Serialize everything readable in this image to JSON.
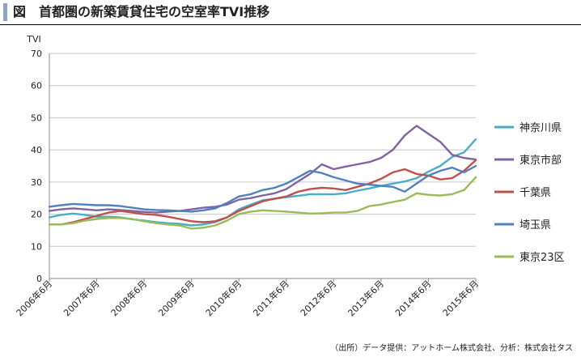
{
  "title": "図　首都圏の新築賃貸住宅の空室率TVI推移",
  "source": "（出所）データ提供：アットホーム株式会社、分析：株式会社タス",
  "chart_data": {
    "type": "line",
    "ylabel": "TVI",
    "ylim": [
      0,
      70
    ],
    "yticks": [
      0,
      10,
      20,
      30,
      40,
      50,
      60,
      70
    ],
    "grid": "horizontal",
    "legend_position": "right",
    "x_start": "2006-06",
    "x_end": "2015-06",
    "x_tick_labels": [
      "2006年6月",
      "2007年6月",
      "2008年6月",
      "2009年6月",
      "2010年6月",
      "2011年6月",
      "2012年6月",
      "2013年6月",
      "2014年6月",
      "2015年6月"
    ],
    "series": [
      {
        "name": "神奈川県",
        "color": "#4bacc6",
        "points": [
          [
            "2006-06",
            19
          ],
          [
            "2006-09",
            19.8
          ],
          [
            "2006-12",
            20.2
          ],
          [
            "2007-03",
            19.8
          ],
          [
            "2007-06",
            19.2
          ],
          [
            "2007-09",
            19.2
          ],
          [
            "2007-12",
            19
          ],
          [
            "2008-03",
            18.4
          ],
          [
            "2008-06",
            18
          ],
          [
            "2008-09",
            17.5
          ],
          [
            "2008-12",
            17.2
          ],
          [
            "2009-03",
            17
          ],
          [
            "2009-06",
            16.5
          ],
          [
            "2009-09",
            16.8
          ],
          [
            "2009-12",
            17.5
          ],
          [
            "2010-03",
            19
          ],
          [
            "2010-06",
            21.5
          ],
          [
            "2010-09",
            23
          ],
          [
            "2010-12",
            24.3
          ],
          [
            "2011-03",
            24.8
          ],
          [
            "2011-06",
            25.3
          ],
          [
            "2011-09",
            25.7
          ],
          [
            "2011-12",
            26.2
          ],
          [
            "2012-03",
            26.2
          ],
          [
            "2012-06",
            26.2
          ],
          [
            "2012-09",
            26.5
          ],
          [
            "2012-12",
            27.3
          ],
          [
            "2013-03",
            28
          ],
          [
            "2013-06",
            28.8
          ],
          [
            "2013-09",
            29.5
          ],
          [
            "2013-12",
            30.2
          ],
          [
            "2014-03",
            31.2
          ],
          [
            "2014-06",
            33.2
          ],
          [
            "2014-09",
            35
          ],
          [
            "2014-12",
            37.8
          ],
          [
            "2015-03",
            39.2
          ],
          [
            "2015-06",
            43.3
          ]
        ]
      },
      {
        "name": "東京市部",
        "color": "#8064a2",
        "points": [
          [
            "2006-06",
            21
          ],
          [
            "2006-09",
            21.5
          ],
          [
            "2006-12",
            21.8
          ],
          [
            "2007-03",
            21.5
          ],
          [
            "2007-06",
            21.2
          ],
          [
            "2007-09",
            21.5
          ],
          [
            "2007-12",
            21.3
          ],
          [
            "2008-03",
            21
          ],
          [
            "2008-06",
            20.7
          ],
          [
            "2008-09",
            20.5
          ],
          [
            "2008-12",
            20.8
          ],
          [
            "2009-03",
            21
          ],
          [
            "2009-06",
            21.5
          ],
          [
            "2009-09",
            22
          ],
          [
            "2009-12",
            22.3
          ],
          [
            "2010-03",
            23
          ],
          [
            "2010-06",
            24.5
          ],
          [
            "2010-09",
            25
          ],
          [
            "2010-12",
            25.8
          ],
          [
            "2011-03",
            26.5
          ],
          [
            "2011-06",
            27.8
          ],
          [
            "2011-09",
            30.2
          ],
          [
            "2011-12",
            32.5
          ],
          [
            "2012-03",
            35.5
          ],
          [
            "2012-06",
            34
          ],
          [
            "2012-09",
            34.8
          ],
          [
            "2012-12",
            35.5
          ],
          [
            "2013-03",
            36.2
          ],
          [
            "2013-06",
            37.5
          ],
          [
            "2013-09",
            40
          ],
          [
            "2013-12",
            44.5
          ],
          [
            "2014-03",
            47.5
          ],
          [
            "2014-06",
            45
          ],
          [
            "2014-09",
            42.5
          ],
          [
            "2014-12",
            38.5
          ],
          [
            "2015-03",
            37.5
          ],
          [
            "2015-06",
            37
          ]
        ]
      },
      {
        "name": "千葉県",
        "color": "#c0504d",
        "points": [
          [
            "2006-06",
            16.8
          ],
          [
            "2006-09",
            16.8
          ],
          [
            "2006-12",
            17.5
          ],
          [
            "2007-03",
            18.5
          ],
          [
            "2007-06",
            19.5
          ],
          [
            "2007-09",
            20.5
          ],
          [
            "2007-12",
            21
          ],
          [
            "2008-03",
            20.5
          ],
          [
            "2008-06",
            20
          ],
          [
            "2008-09",
            19.8
          ],
          [
            "2008-12",
            19.2
          ],
          [
            "2009-03",
            18.5
          ],
          [
            "2009-06",
            17.8
          ],
          [
            "2009-09",
            17.5
          ],
          [
            "2009-12",
            17.8
          ],
          [
            "2010-03",
            19
          ],
          [
            "2010-06",
            21
          ],
          [
            "2010-09",
            22.5
          ],
          [
            "2010-12",
            24
          ],
          [
            "2011-03",
            24.8
          ],
          [
            "2011-06",
            25.5
          ],
          [
            "2011-09",
            27
          ],
          [
            "2011-12",
            27.8
          ],
          [
            "2012-03",
            28.2
          ],
          [
            "2012-06",
            28
          ],
          [
            "2012-09",
            27.5
          ],
          [
            "2012-12",
            28.5
          ],
          [
            "2013-03",
            29.5
          ],
          [
            "2013-06",
            31
          ],
          [
            "2013-09",
            33
          ],
          [
            "2013-12",
            34
          ],
          [
            "2014-03",
            32.5
          ],
          [
            "2014-06",
            32
          ],
          [
            "2014-09",
            30.8
          ],
          [
            "2014-12",
            31.2
          ],
          [
            "2015-03",
            33.5
          ],
          [
            "2015-06",
            36.8
          ]
        ]
      },
      {
        "name": "埼玉県",
        "color": "#4f81bd",
        "points": [
          [
            "2006-06",
            22.3
          ],
          [
            "2006-09",
            22.8
          ],
          [
            "2006-12",
            23.2
          ],
          [
            "2007-03",
            23
          ],
          [
            "2007-06",
            22.8
          ],
          [
            "2007-09",
            22.8
          ],
          [
            "2007-12",
            22.5
          ],
          [
            "2008-03",
            22
          ],
          [
            "2008-06",
            21.5
          ],
          [
            "2008-09",
            21.3
          ],
          [
            "2008-12",
            21.2
          ],
          [
            "2009-03",
            21
          ],
          [
            "2009-06",
            20.8
          ],
          [
            "2009-09",
            21.2
          ],
          [
            "2009-12",
            21.8
          ],
          [
            "2010-03",
            23.5
          ],
          [
            "2010-06",
            25.5
          ],
          [
            "2010-09",
            26.2
          ],
          [
            "2010-12",
            27.5
          ],
          [
            "2011-03",
            28.2
          ],
          [
            "2011-06",
            29.5
          ],
          [
            "2011-09",
            31.5
          ],
          [
            "2011-12",
            33.5
          ],
          [
            "2012-03",
            32.8
          ],
          [
            "2012-06",
            31.5
          ],
          [
            "2012-09",
            30.5
          ],
          [
            "2012-12",
            29.5
          ],
          [
            "2013-03",
            29.2
          ],
          [
            "2013-06",
            28.8
          ],
          [
            "2013-09",
            28.5
          ],
          [
            "2013-12",
            27
          ],
          [
            "2014-03",
            29.5
          ],
          [
            "2014-06",
            32
          ],
          [
            "2014-09",
            33.5
          ],
          [
            "2014-12",
            34.5
          ],
          [
            "2015-03",
            33
          ],
          [
            "2015-06",
            35
          ]
        ]
      },
      {
        "name": "東京23区",
        "color": "#9bbb59",
        "points": [
          [
            "2006-06",
            16.8
          ],
          [
            "2006-09",
            16.8
          ],
          [
            "2006-12",
            17.2
          ],
          [
            "2007-03",
            18
          ],
          [
            "2007-06",
            18.5
          ],
          [
            "2007-09",
            18.8
          ],
          [
            "2007-12",
            18.8
          ],
          [
            "2008-03",
            18.5
          ],
          [
            "2008-06",
            17.8
          ],
          [
            "2008-09",
            17.2
          ],
          [
            "2008-12",
            16.8
          ],
          [
            "2009-03",
            16.5
          ],
          [
            "2009-06",
            15.5
          ],
          [
            "2009-09",
            15.8
          ],
          [
            "2009-12",
            16.5
          ],
          [
            "2010-03",
            18
          ],
          [
            "2010-06",
            20
          ],
          [
            "2010-09",
            20.8
          ],
          [
            "2010-12",
            21.2
          ],
          [
            "2011-03",
            21
          ],
          [
            "2011-06",
            20.8
          ],
          [
            "2011-09",
            20.5
          ],
          [
            "2011-12",
            20.2
          ],
          [
            "2012-03",
            20.3
          ],
          [
            "2012-06",
            20.5
          ],
          [
            "2012-09",
            20.5
          ],
          [
            "2012-12",
            21
          ],
          [
            "2013-03",
            22.5
          ],
          [
            "2013-06",
            23
          ],
          [
            "2013-09",
            23.8
          ],
          [
            "2013-12",
            24.5
          ],
          [
            "2014-03",
            26.5
          ],
          [
            "2014-06",
            26
          ],
          [
            "2014-09",
            25.8
          ],
          [
            "2014-12",
            26.2
          ],
          [
            "2015-03",
            27.5
          ],
          [
            "2015-06",
            31.5
          ]
        ]
      }
    ]
  }
}
